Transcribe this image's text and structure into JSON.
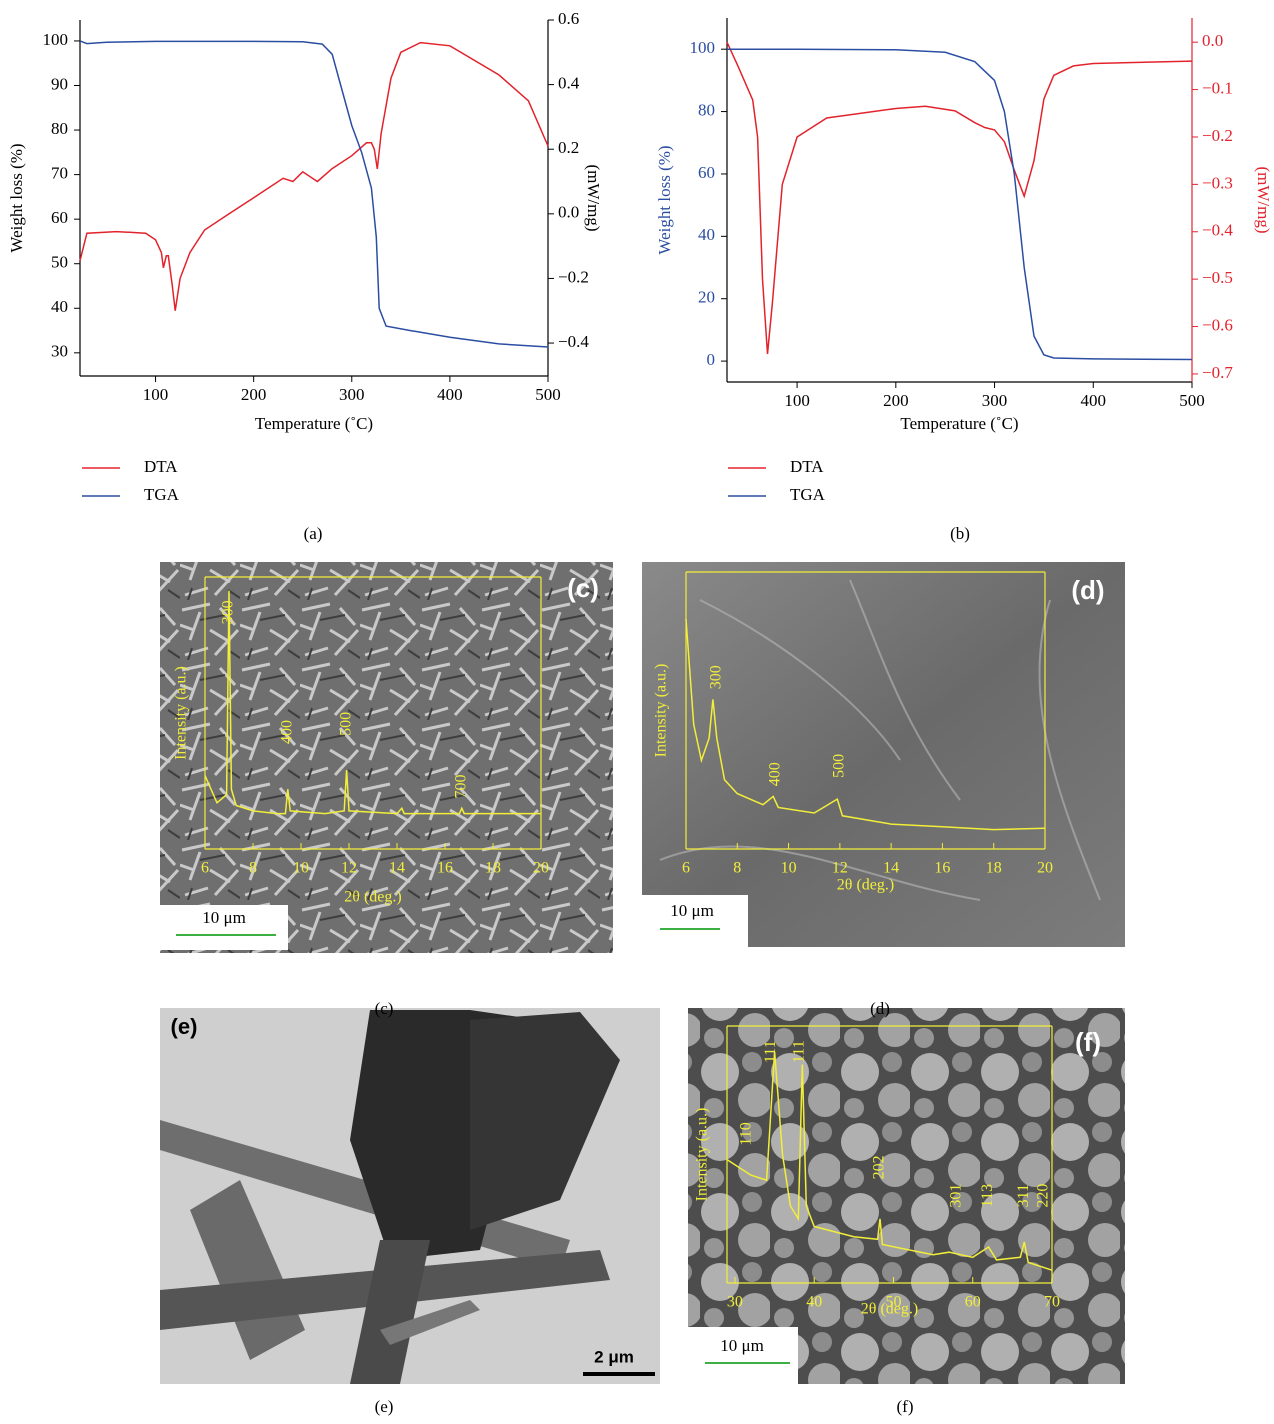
{
  "chart_data": [
    {
      "type": "line",
      "x_label": "Temperature (˚C)",
      "y_label": "Weight loss (%)",
      "y2_label": "(mW/mg)",
      "xlim": [
        23,
        500
      ],
      "xticks": [
        100,
        200,
        300,
        400,
        500
      ],
      "ylim": [
        24.8,
        104.7
      ],
      "yticks": [
        30,
        40,
        50,
        60,
        70,
        80,
        90,
        100
      ],
      "y2lim": [
        -0.502,
        0.6
      ],
      "y2ticks": [
        {
          "value": -0.4,
          "label": "−0.4"
        },
        {
          "value": -0.2,
          "label": "−0.2"
        },
        {
          "value": 0,
          "label": "0.0"
        },
        0.2,
        0.4,
        0.6
      ],
      "y_color": "#000000",
      "y2_color": "#000000",
      "series": [
        {
          "name": "DTA",
          "color": "#e3232c",
          "axis": "y2",
          "x": [
            23,
            30,
            60,
            90,
            100,
            106,
            108,
            111,
            113,
            117,
            120,
            125,
            135,
            150,
            175,
            200,
            230,
            240,
            250,
            265,
            280,
            300,
            315,
            320,
            323,
            326,
            330,
            340,
            350,
            370,
            400,
            450,
            480,
            500
          ],
          "values": [
            -0.145,
            -0.06,
            -0.055,
            -0.06,
            -0.08,
            -0.12,
            -0.167,
            -0.13,
            -0.13,
            -0.22,
            -0.3,
            -0.2,
            -0.12,
            -0.05,
            0.0,
            0.05,
            0.11,
            0.1,
            0.13,
            0.1,
            0.14,
            0.18,
            0.22,
            0.22,
            0.2,
            0.139,
            0.25,
            0.42,
            0.5,
            0.53,
            0.52,
            0.43,
            0.35,
            0.21
          ]
        },
        {
          "name": "TGA",
          "color": "#2b4ea2",
          "x": [
            23,
            30,
            50,
            100,
            150,
            200,
            250,
            270,
            280,
            290,
            300,
            310,
            320,
            325,
            328,
            335,
            360,
            365,
            400,
            450,
            500
          ],
          "values": [
            100,
            99.4,
            99.7,
            99.9,
            99.9,
            99.9,
            99.8,
            99.3,
            97,
            89,
            81,
            75,
            67,
            56,
            40,
            36,
            35,
            34.8,
            33.5,
            32,
            31.3
          ]
        }
      ]
    },
    {
      "type": "line",
      "x_label": "Temperature (˚C)",
      "y_label": "Weight loss (%)",
      "y2_label": "(mW/mg)",
      "xlim": [
        29,
        500
      ],
      "xticks": [
        100,
        200,
        300,
        400,
        500
      ],
      "ylim": [
        -6.7,
        110
      ],
      "yticks": [
        0,
        20,
        40,
        60,
        80,
        100
      ],
      "y2lim": [
        -0.717,
        0.051
      ],
      "y2ticks": [
        {
          "value": -0.7,
          "label": "−0.7"
        },
        {
          "value": -0.6,
          "label": "−0.6"
        },
        {
          "value": -0.5,
          "label": "−0.5"
        },
        {
          "value": -0.4,
          "label": "−0.4"
        },
        {
          "value": -0.3,
          "label": "−0.3"
        },
        {
          "value": -0.2,
          "label": "−0.2"
        },
        {
          "value": -0.1,
          "label": "−0.1"
        },
        {
          "value": 0,
          "label": "0.0"
        }
      ],
      "y_color": "#2b4ea2",
      "y2_color": "#e3232c",
      "series": [
        {
          "name": "DTA",
          "color": "#e3232c",
          "axis": "y2",
          "x": [
            29,
            40,
            55,
            60,
            65,
            70,
            75,
            85,
            100,
            130,
            200,
            230,
            260,
            280,
            290,
            300,
            310,
            320,
            330,
            340,
            350,
            360,
            380,
            400,
            500
          ],
          "values": [
            0.0,
            -0.05,
            -0.122,
            -0.2,
            -0.5,
            -0.658,
            -0.55,
            -0.3,
            -0.2,
            -0.16,
            -0.14,
            -0.135,
            -0.145,
            -0.17,
            -0.18,
            -0.185,
            -0.21,
            -0.27,
            -0.325,
            -0.25,
            -0.12,
            -0.07,
            -0.05,
            -0.045,
            -0.04
          ]
        },
        {
          "name": "TGA",
          "color": "#2b4ea2",
          "x": [
            29,
            100,
            200,
            250,
            280,
            300,
            310,
            320,
            330,
            340,
            350,
            360,
            400,
            500
          ],
          "values": [
            100,
            100,
            99.8,
            99,
            96,
            90,
            80,
            60,
            30,
            8,
            2,
            1,
            0.7,
            0.5
          ]
        }
      ]
    },
    {
      "type": "line",
      "x_label": "2θ (deg.)",
      "y_label": "Intensity (a.u.)",
      "axis_color": "#f2ee3a",
      "xlim": [
        6,
        20
      ],
      "xticks": [
        6,
        8,
        10,
        12,
        14,
        16,
        18,
        20
      ],
      "ylim": [
        0,
        100
      ],
      "series": [
        {
          "color": "#f2ee3a",
          "x": [
            6,
            6.5,
            6.9,
            7.0,
            7.1,
            7.3,
            8,
            9,
            9.35,
            9.45,
            9.55,
            11,
            11.8,
            11.9,
            12.0,
            14,
            14.2,
            14.3,
            16.6,
            16.7,
            16.8,
            20
          ],
          "values": [
            27,
            17,
            20,
            95,
            22,
            16,
            14,
            13,
            13,
            22,
            14,
            13,
            14,
            29,
            14,
            13,
            15,
            13,
            13,
            15,
            13,
            13
          ]
        }
      ],
      "annotations": [
        {
          "text": "300",
          "x": 7.0,
          "y": 87
        },
        {
          "text": "400",
          "x": 9.45,
          "y": 43
        },
        {
          "text": "500",
          "x": 11.9,
          "y": 46
        },
        {
          "text": "700",
          "x": 16.7,
          "y": 23
        }
      ]
    },
    {
      "type": "line",
      "x_label": "2θ (deg.)",
      "y_label": "Intensity (a.u.)",
      "axis_color": "#f2ee3a",
      "xlim": [
        6,
        20
      ],
      "xticks": [
        6,
        8,
        10,
        12,
        14,
        16,
        18,
        20
      ],
      "ylim": [
        0,
        100
      ],
      "series": [
        {
          "color": "#f2ee3a",
          "x": [
            6,
            6.3,
            6.6,
            6.9,
            7.05,
            7.2,
            7.5,
            8,
            9,
            9.4,
            9.6,
            11,
            11.9,
            12.1,
            14,
            16,
            18,
            20
          ],
          "values": [
            83,
            45,
            32,
            40,
            54,
            40,
            25,
            20,
            16,
            19,
            15,
            13,
            18,
            12,
            9,
            8,
            7,
            7.5
          ]
        }
      ],
      "annotations": [
        {
          "text": "300",
          "x": 7.2,
          "y": 62
        },
        {
          "text": "400",
          "x": 9.5,
          "y": 27
        },
        {
          "text": "500",
          "x": 12.0,
          "y": 30
        }
      ]
    },
    {
      "type": "line",
      "x_label": "2θ (deg.)",
      "y_label": "Intensity (a.u.)",
      "axis_color": "#f2ee3a",
      "xlim": [
        29,
        70
      ],
      "xticks": [
        30,
        40,
        50,
        60,
        70
      ],
      "ylim": [
        0,
        100
      ],
      "series": [
        {
          "color": "#f2ee3a",
          "x": [
            29,
            32,
            34,
            35,
            36,
            37,
            38,
            38.5,
            39,
            40,
            45,
            48,
            48.3,
            48.6,
            55,
            57,
            60,
            62,
            63,
            66,
            66.5,
            67,
            70
          ],
          "values": [
            48,
            42,
            40,
            90,
            50,
            30,
            25,
            85,
            30,
            22,
            18,
            17,
            25,
            15,
            11,
            12,
            10,
            14,
            9,
            10,
            16,
            8,
            5
          ]
        }
      ],
      "annotations": [
        {
          "text": "110",
          "x": 31.5,
          "y": 58
        },
        {
          "text": "111",
          "x": 34.6,
          "y": 90
        },
        {
          "text": "111",
          "x": 38.2,
          "y": 90
        },
        {
          "text": "202",
          "x": 48.3,
          "y": 45
        },
        {
          "text": "301",
          "x": 58,
          "y": 34
        },
        {
          "text": "113",
          "x": 62,
          "y": 34
        },
        {
          "text": "311",
          "x": 66.5,
          "y": 34
        },
        {
          "text": "220",
          "x": 69,
          "y": 34
        }
      ]
    }
  ],
  "panels": {
    "captions": [
      "(a)",
      "(b)",
      "(c)",
      "(d)",
      "(e)",
      "(f)"
    ],
    "image_labels": [
      "(c)",
      "(d)",
      "(e)",
      "(f)"
    ],
    "scale_bars": [
      "10 μm",
      "10 μm",
      "2 μm",
      "10 μm"
    ]
  }
}
